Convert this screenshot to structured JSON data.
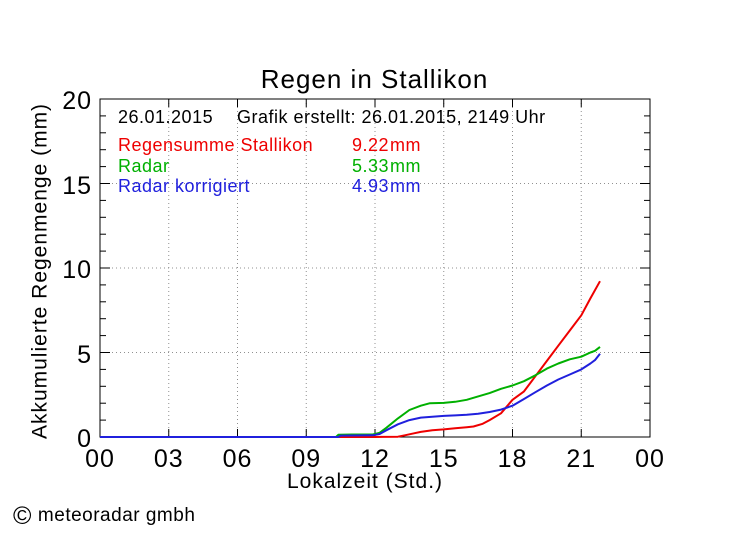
{
  "chart_data": {
    "type": "line",
    "title": "Regen in Stallikon",
    "xlabel": "Lokalzeit (Std.)",
    "ylabel": "Akkumulierte Regenmenge (mm)",
    "xlim": [
      0,
      24
    ],
    "ylim": [
      0,
      20
    ],
    "x_ticks": [
      0,
      3,
      6,
      9,
      12,
      15,
      18,
      21,
      24
    ],
    "x_tick_labels": [
      "00",
      "03",
      "06",
      "09",
      "12",
      "15",
      "18",
      "21",
      "00"
    ],
    "y_ticks": [
      0,
      5,
      10,
      15,
      20
    ],
    "y_tick_labels": [
      "0",
      "5",
      "10",
      "15",
      "20"
    ],
    "y_minor_step": 1,
    "grid": "dotted-at-major-ticks",
    "legend_position": "top-left-inside",
    "series": [
      {
        "name": "Regensumme Stallikon",
        "total": "9.22",
        "color": "#ee0000",
        "points": [
          [
            0,
            0
          ],
          [
            2,
            0
          ],
          [
            4,
            0
          ],
          [
            6,
            0
          ],
          [
            8,
            0
          ],
          [
            10,
            0
          ],
          [
            11,
            0
          ],
          [
            12,
            0
          ],
          [
            13,
            0.02
          ],
          [
            13.3,
            0.1
          ],
          [
            13.7,
            0.22
          ],
          [
            14,
            0.3
          ],
          [
            14.5,
            0.4
          ],
          [
            15,
            0.45
          ],
          [
            15.5,
            0.52
          ],
          [
            16,
            0.58
          ],
          [
            16.3,
            0.62
          ],
          [
            16.7,
            0.78
          ],
          [
            17,
            1.0
          ],
          [
            17.5,
            1.4
          ],
          [
            18,
            2.2
          ],
          [
            18.5,
            2.7
          ],
          [
            19,
            3.6
          ],
          [
            19.5,
            4.5
          ],
          [
            20,
            5.4
          ],
          [
            20.5,
            6.3
          ],
          [
            21,
            7.2
          ],
          [
            21.4,
            8.2
          ],
          [
            21.82,
            9.22
          ]
        ]
      },
      {
        "name": "Radar",
        "total": "5.33",
        "color": "#00b000",
        "points": [
          [
            0,
            0
          ],
          [
            2,
            0
          ],
          [
            4,
            0
          ],
          [
            6,
            0
          ],
          [
            8,
            0
          ],
          [
            10.3,
            0
          ],
          [
            10.4,
            0.13
          ],
          [
            11,
            0.15
          ],
          [
            11.9,
            0.15
          ],
          [
            12.2,
            0.25
          ],
          [
            12.5,
            0.55
          ],
          [
            13,
            1.1
          ],
          [
            13.5,
            1.6
          ],
          [
            14,
            1.85
          ],
          [
            14.4,
            2.0
          ],
          [
            15,
            2.02
          ],
          [
            15.5,
            2.08
          ],
          [
            16,
            2.2
          ],
          [
            16.5,
            2.4
          ],
          [
            17,
            2.6
          ],
          [
            17.5,
            2.85
          ],
          [
            18,
            3.05
          ],
          [
            18.5,
            3.3
          ],
          [
            19,
            3.65
          ],
          [
            19.5,
            4.05
          ],
          [
            20,
            4.35
          ],
          [
            20.5,
            4.6
          ],
          [
            21,
            4.75
          ],
          [
            21.4,
            5.0
          ],
          [
            21.6,
            5.1
          ],
          [
            21.82,
            5.33
          ]
        ]
      },
      {
        "name": "Radar korrigiert",
        "total": "4.93",
        "color": "#2020dd",
        "points": [
          [
            0,
            0
          ],
          [
            2,
            0
          ],
          [
            4,
            0
          ],
          [
            6,
            0
          ],
          [
            8,
            0
          ],
          [
            10.4,
            0
          ],
          [
            10.5,
            0.08
          ],
          [
            11.9,
            0.1
          ],
          [
            12.2,
            0.18
          ],
          [
            12.5,
            0.4
          ],
          [
            13,
            0.75
          ],
          [
            13.5,
            1.0
          ],
          [
            14,
            1.15
          ],
          [
            14.5,
            1.2
          ],
          [
            15,
            1.25
          ],
          [
            15.5,
            1.28
          ],
          [
            16,
            1.32
          ],
          [
            16.5,
            1.38
          ],
          [
            17,
            1.48
          ],
          [
            17.5,
            1.62
          ],
          [
            18,
            1.85
          ],
          [
            18.5,
            2.25
          ],
          [
            19,
            2.65
          ],
          [
            19.5,
            3.05
          ],
          [
            20,
            3.4
          ],
          [
            20.5,
            3.7
          ],
          [
            21,
            4.0
          ],
          [
            21.4,
            4.35
          ],
          [
            21.6,
            4.55
          ],
          [
            21.82,
            4.93
          ]
        ]
      }
    ]
  },
  "header": {
    "date": "26.01.2015",
    "created": "Grafik erstellt: 26.01.2015, 2149 Uhr"
  },
  "legend": {
    "unit": "mm"
  },
  "footer": {
    "symbol": "©",
    "company": "meteoradar gmbh"
  },
  "colors": {
    "frame": "#000000",
    "grid": "#909090",
    "background": "#ffffff",
    "text": "#000000"
  }
}
